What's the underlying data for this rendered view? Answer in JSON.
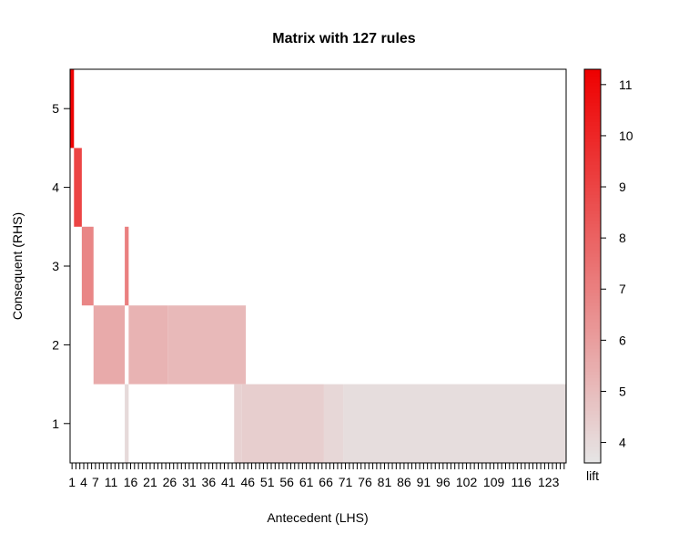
{
  "chart_data": {
    "type": "heatmap",
    "title": "Matrix with 127 rules",
    "xlabel": "Antecedent (LHS)",
    "ylabel": "Consequent (RHS)",
    "xlim": [
      0.5,
      127.5
    ],
    "ylim": [
      0.5,
      5.5
    ],
    "x_tick_labels": [
      "1",
      "4",
      "7",
      "11",
      "16",
      "21",
      "26",
      "31",
      "36",
      "41",
      "46",
      "51",
      "56",
      "61",
      "66",
      "71",
      "76",
      "81",
      "86",
      "91",
      "96",
      "102",
      "109",
      "116",
      "123"
    ],
    "y_tick_labels": [
      "1",
      "2",
      "3",
      "4",
      "5"
    ],
    "cells": [
      {
        "x": [
          1,
          1
        ],
        "y": 5,
        "lift": 11.2
      },
      {
        "x": [
          2,
          3
        ],
        "y": 4,
        "lift": 9.0
      },
      {
        "x": [
          4,
          6
        ],
        "y": 3,
        "lift": 6.8
      },
      {
        "x": [
          15,
          15
        ],
        "y": 3,
        "lift": 7.0
      },
      {
        "x": [
          7,
          14
        ],
        "y": 2,
        "lift": 5.6
      },
      {
        "x": [
          16,
          25
        ],
        "y": 2,
        "lift": 5.3
      },
      {
        "x": [
          26,
          45
        ],
        "y": 2,
        "lift": 5.1
      },
      {
        "x": [
          15,
          15
        ],
        "y": 1,
        "lift": 4.0
      },
      {
        "x": [
          43,
          44
        ],
        "y": 1,
        "lift": 4.3
      },
      {
        "x": [
          45,
          65
        ],
        "y": 1,
        "lift": 4.4
      },
      {
        "x": [
          66,
          70
        ],
        "y": 1,
        "lift": 4.1
      },
      {
        "x": [
          71,
          127
        ],
        "y": 1,
        "lift": 3.9
      }
    ],
    "legend": {
      "title": "lift",
      "min": 3.6,
      "max": 11.3,
      "ticks": [
        4,
        5,
        6,
        7,
        8,
        9,
        10,
        11
      ],
      "color_low": "#e6e6e6",
      "color_high": "#ee0000",
      "placement": "right"
    }
  }
}
